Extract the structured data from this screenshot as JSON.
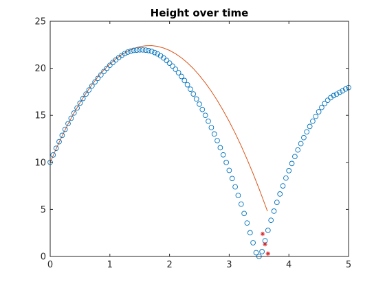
{
  "chart_data": {
    "type": "scatter",
    "title": "Height over time",
    "xlabel": "",
    "ylabel": "",
    "xlim": [
      0,
      5
    ],
    "ylim": [
      0,
      25
    ],
    "xticks": [
      0,
      1,
      2,
      3,
      4,
      5
    ],
    "yticks": [
      0,
      5,
      10,
      15,
      20,
      25
    ],
    "grid": false,
    "legend": "none",
    "series": [
      {
        "type": "line",
        "color": "#d95319",
        "x": [
          0.0,
          0.1,
          0.2,
          0.3,
          0.4,
          0.5,
          0.6,
          0.7,
          0.8,
          0.9,
          1.0,
          1.1,
          1.2,
          1.3,
          1.4,
          1.5,
          1.6,
          1.7,
          1.8,
          1.9,
          2.0,
          2.1,
          2.2,
          2.3,
          2.4,
          2.5,
          2.6,
          2.7,
          2.8,
          2.9,
          3.0,
          3.1,
          3.2,
          3.3,
          3.4,
          3.5,
          3.6,
          3.64
        ],
        "y": [
          10.0,
          11.45,
          12.81,
          14.08,
          15.26,
          16.35,
          17.35,
          18.26,
          19.08,
          19.81,
          20.45,
          21.0,
          21.46,
          21.83,
          22.11,
          22.3,
          22.4,
          22.41,
          22.33,
          22.16,
          21.9,
          21.55,
          21.11,
          20.58,
          19.96,
          19.25,
          18.45,
          17.56,
          16.58,
          15.51,
          14.35,
          13.1,
          11.76,
          10.33,
          8.81,
          7.2,
          5.5,
          4.8
        ]
      },
      {
        "type": "scatter",
        "marker": "circle",
        "color": "#0072bd",
        "x": [
          0.0,
          0.05,
          0.1,
          0.15,
          0.2,
          0.25,
          0.3,
          0.35,
          0.4,
          0.45,
          0.5,
          0.55,
          0.6,
          0.65,
          0.7,
          0.75,
          0.8,
          0.85,
          0.9,
          0.95,
          1.0,
          1.05,
          1.1,
          1.15,
          1.2,
          1.25,
          1.3,
          1.35,
          1.4,
          1.45,
          1.5,
          1.55,
          1.6,
          1.65,
          1.7,
          1.75,
          1.8,
          1.85,
          1.9,
          1.95,
          2.0,
          2.05,
          2.1,
          2.15,
          2.2,
          2.25,
          2.3,
          2.35,
          2.4,
          2.45,
          2.5,
          2.55,
          2.6,
          2.65,
          2.7,
          2.75,
          2.8,
          2.85,
          2.9,
          2.95,
          3.0,
          3.05,
          3.1,
          3.15,
          3.2,
          3.25,
          3.3,
          3.35,
          3.4,
          3.45,
          3.5,
          3.55,
          3.6,
          3.65,
          3.7,
          3.75,
          3.8,
          3.85,
          3.9,
          3.95,
          4.0,
          4.05,
          4.1,
          4.15,
          4.2,
          4.25,
          4.3,
          4.35,
          4.4,
          4.45,
          4.5,
          4.55,
          4.6,
          4.65,
          4.7,
          4.75,
          4.8,
          4.85,
          4.9,
          4.95,
          5.0
        ],
        "y": [
          10.0,
          10.79,
          11.5,
          12.2,
          12.87,
          13.51,
          14.12,
          14.69,
          15.25,
          15.78,
          16.3,
          16.79,
          17.26,
          17.7,
          18.13,
          18.54,
          18.93,
          19.3,
          19.66,
          20.0,
          20.32,
          20.62,
          20.9,
          21.15,
          21.38,
          21.57,
          21.72,
          21.83,
          21.9,
          21.93,
          21.95,
          21.95,
          21.93,
          21.88,
          21.8,
          21.68,
          21.52,
          21.33,
          21.1,
          20.84,
          20.55,
          20.24,
          19.9,
          19.53,
          19.13,
          18.7,
          18.25,
          17.78,
          17.27,
          16.74,
          16.19,
          15.62,
          15.0,
          14.37,
          13.7,
          13.02,
          12.31,
          11.56,
          10.8,
          9.99,
          9.15,
          8.29,
          7.4,
          6.49,
          5.56,
          4.57,
          3.56,
          2.52,
          1.46,
          0.4,
          0.0,
          0.52,
          1.67,
          2.78,
          3.85,
          4.82,
          5.75,
          6.64,
          7.5,
          8.33,
          9.12,
          9.88,
          10.62,
          11.32,
          11.99,
          12.63,
          13.24,
          13.82,
          14.37,
          14.89,
          15.38,
          15.84,
          16.26,
          16.6,
          16.88,
          17.1,
          17.25,
          17.45,
          17.6,
          17.8,
          17.95
        ]
      },
      {
        "type": "scatter",
        "marker": "asterisk",
        "color": "#d62728",
        "x": [
          3.56,
          3.6,
          3.65
        ],
        "y": [
          2.4,
          1.3,
          0.3
        ]
      }
    ]
  }
}
